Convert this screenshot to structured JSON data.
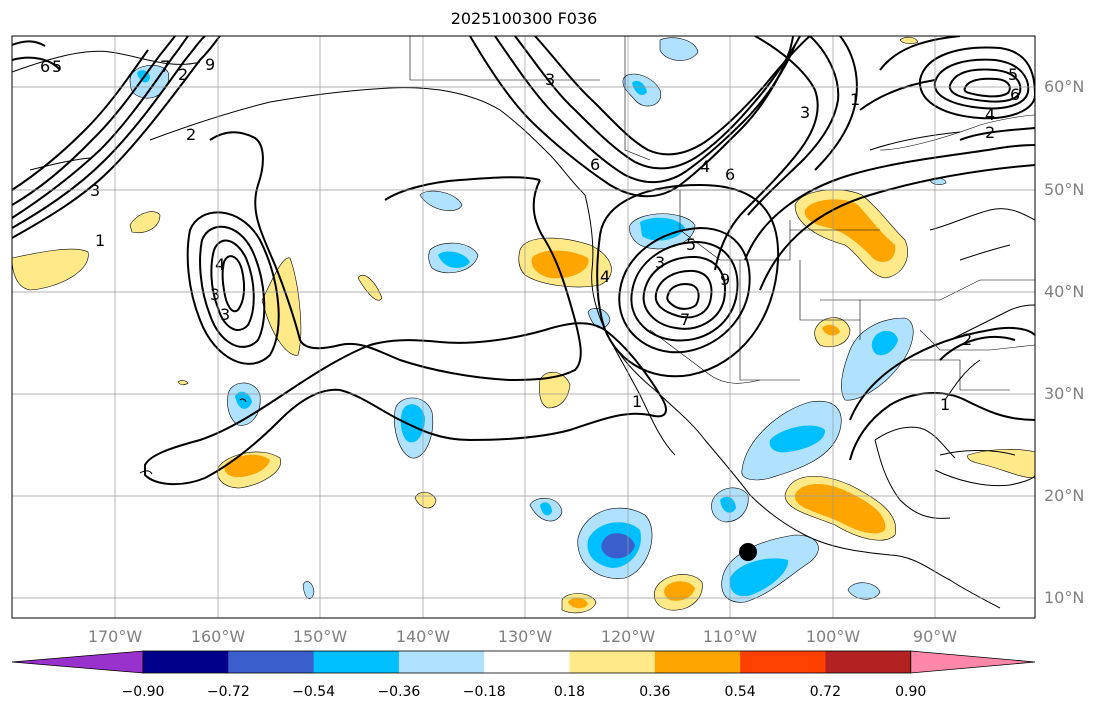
{
  "title": "2025100300 F036",
  "lat_labels": [
    "60°N",
    "50°N",
    "40°N",
    "30°N",
    "20°N",
    "10°N"
  ],
  "lon_labels": [
    "170°W",
    "160°W",
    "150°W",
    "140°W",
    "130°W",
    "120°W",
    "110°W",
    "100°W",
    "90°W"
  ],
  "colorbar": {
    "labels": [
      "−0.90",
      "−0.72",
      "−0.54",
      "−0.36",
      "−0.18",
      "0.18",
      "0.36",
      "0.54",
      "0.72",
      "0.90"
    ],
    "colors": [
      "#9932cc",
      "#00008b",
      "#3a5fcd",
      "#00bfff",
      "#b0e2ff",
      "#ffffff",
      "#ffe989",
      "#ffa500",
      "#ff4000",
      "#b22222",
      "#ff88aa"
    ]
  },
  "contour_labels": [
    "6",
    "5",
    "3",
    "1",
    "2",
    "9",
    "7",
    "4",
    "3",
    "3",
    "2",
    "6",
    "4",
    "5",
    "3",
    "9",
    "7",
    "6",
    "3",
    "2",
    "5",
    "4",
    "6",
    "1",
    "1",
    "2",
    "1",
    "4",
    "3"
  ],
  "marker": "storm-center"
}
